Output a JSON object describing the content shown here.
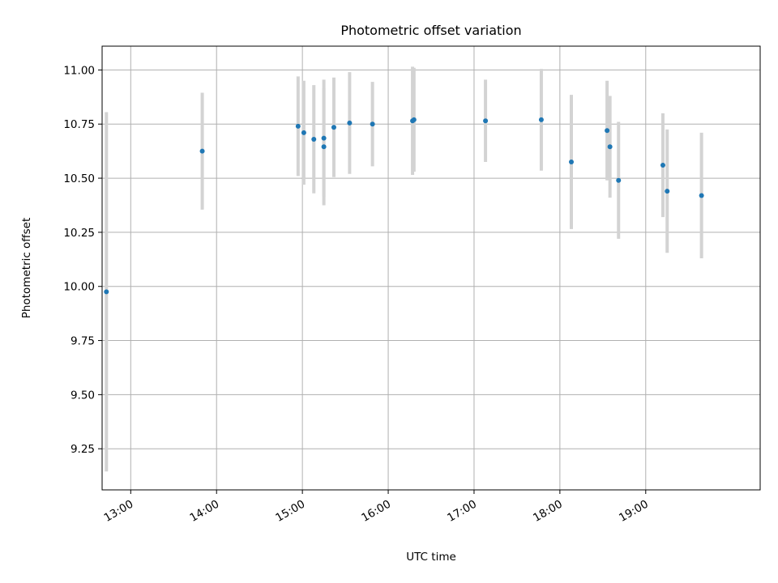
{
  "chart_data": {
    "type": "scatter",
    "title": "Photometric offset variation",
    "xlabel": "UTC time",
    "ylabel": "Photometric offset",
    "xlim": [
      "12:40",
      "20:20"
    ],
    "ylim": [
      9.06,
      11.11
    ],
    "x_ticks": [
      "13:00",
      "14:00",
      "15:00",
      "16:00",
      "17:00",
      "18:00",
      "19:00"
    ],
    "y_ticks": [
      "9.25",
      "9.50",
      "9.75",
      "10.00",
      "10.25",
      "10.50",
      "10.75",
      "11.00"
    ],
    "grid": true,
    "point_color": "#1f77b4",
    "errorbar_color": "#d3d3d3",
    "points": [
      {
        "x": "12:43",
        "y": 9.975,
        "yerr": 0.83
      },
      {
        "x": "13:50",
        "y": 10.625,
        "yerr": 0.27
      },
      {
        "x": "14:57",
        "y": 10.74,
        "yerr": 0.23
      },
      {
        "x": "15:01",
        "y": 10.71,
        "yerr": 0.24
      },
      {
        "x": "15:08",
        "y": 10.68,
        "yerr": 0.25
      },
      {
        "x": "15:15",
        "y": 10.645,
        "yerr": 0.27
      },
      {
        "x": "15:15",
        "y": 10.685,
        "yerr": 0.27
      },
      {
        "x": "15:22",
        "y": 10.735,
        "yerr": 0.23
      },
      {
        "x": "15:33",
        "y": 10.755,
        "yerr": 0.235
      },
      {
        "x": "15:49",
        "y": 10.75,
        "yerr": 0.195
      },
      {
        "x": "16:17",
        "y": 10.765,
        "yerr": 0.25
      },
      {
        "x": "16:18",
        "y": 10.77,
        "yerr": 0.24
      },
      {
        "x": "17:08",
        "y": 10.765,
        "yerr": 0.19
      },
      {
        "x": "17:47",
        "y": 10.77,
        "yerr": 0.235
      },
      {
        "x": "18:08",
        "y": 10.575,
        "yerr": 0.31
      },
      {
        "x": "18:33",
        "y": 10.72,
        "yerr": 0.23
      },
      {
        "x": "18:35",
        "y": 10.645,
        "yerr": 0.235
      },
      {
        "x": "18:41",
        "y": 10.49,
        "yerr": 0.27
      },
      {
        "x": "19:12",
        "y": 10.56,
        "yerr": 0.24
      },
      {
        "x": "19:15",
        "y": 10.44,
        "yerr": 0.285
      },
      {
        "x": "19:39",
        "y": 10.42,
        "yerr": 0.29
      }
    ]
  }
}
